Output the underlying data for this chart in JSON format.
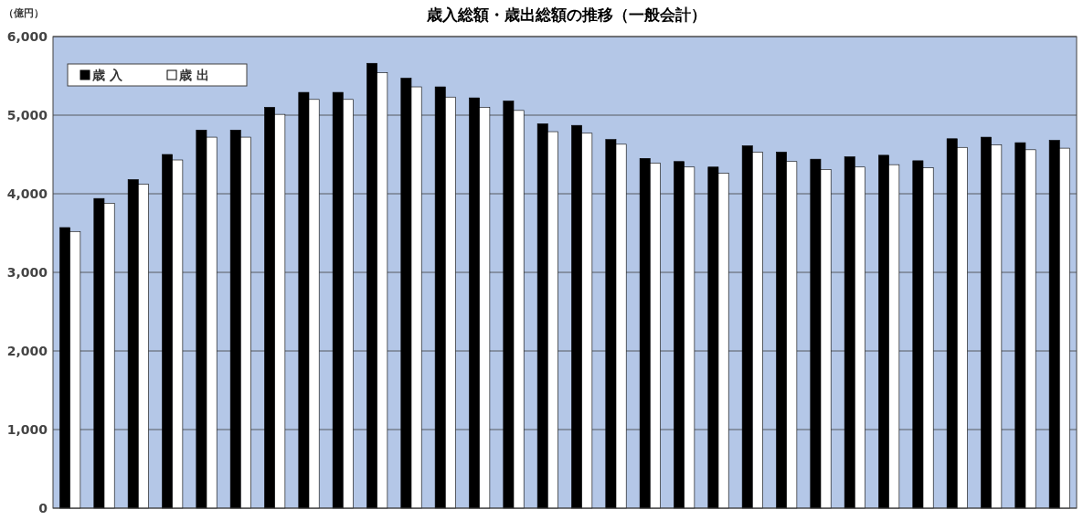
{
  "chart_data": {
    "type": "bar",
    "title": "歳入総額・歳出総額の推移（一般会計）",
    "ylabel": "（億円）",
    "categories": [
      null,
      null,
      null,
      null,
      null,
      null,
      null,
      null,
      null,
      null,
      null,
      null,
      null,
      null,
      null,
      null,
      null,
      null,
      null,
      null,
      null,
      null,
      null,
      null,
      null,
      null,
      null,
      null,
      null,
      null
    ],
    "series": [
      {
        "name": "歳 入",
        "color": "#000000",
        "values": [
          3570,
          3940,
          4180,
          4500,
          4810,
          4810,
          5100,
          5290,
          5290,
          5660,
          5470,
          5360,
          5220,
          5180,
          4890,
          4870,
          4690,
          4450,
          4410,
          4340,
          4610,
          4530,
          4440,
          4470,
          4490,
          4420,
          4700,
          4720,
          4650,
          4680
        ]
      },
      {
        "name": "歳 出",
        "color": "#ffffff",
        "values": [
          3520,
          3880,
          4120,
          4430,
          4720,
          4720,
          5010,
          5200,
          5200,
          5540,
          5360,
          5230,
          5100,
          5060,
          4790,
          4770,
          4630,
          4390,
          4340,
          4260,
          4530,
          4410,
          4310,
          4340,
          4370,
          4330,
          4590,
          4620,
          4560,
          4580
        ]
      }
    ],
    "ylim": [
      0,
      6000
    ],
    "yticks": [
      {
        "value": 0,
        "label": "0"
      },
      {
        "value": 1000,
        "label": "1,000"
      },
      {
        "value": 2000,
        "label": "2,000"
      },
      {
        "value": 3000,
        "label": "3,000"
      },
      {
        "value": 4000,
        "label": "4,000"
      },
      {
        "value": 5000,
        "label": "5,000"
      },
      {
        "value": 6000,
        "label": "6,000"
      }
    ],
    "grid": "y",
    "legend": "top left"
  }
}
